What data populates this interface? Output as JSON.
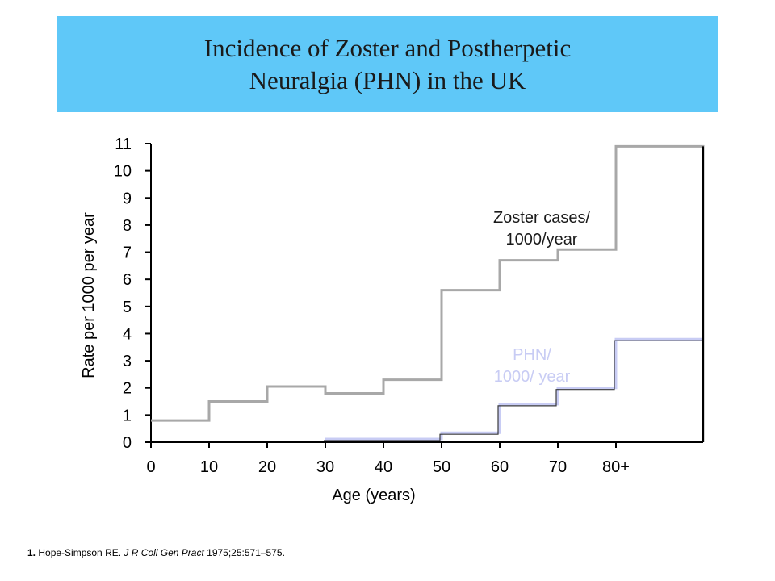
{
  "header": {
    "title_line1": "Incidence of Zoster and Postherpetic",
    "title_line2": "Neuralgia (PHN) in the UK"
  },
  "chart_data": {
    "type": "line",
    "step": true,
    "xlabel": "Age (years)",
    "ylabel": "Rate per 1000 per year",
    "xlim": [
      0,
      95
    ],
    "ylim": [
      0,
      11
    ],
    "x_ticks": [
      "0",
      "10",
      "20",
      "30",
      "40",
      "50",
      "60",
      "70",
      "80+"
    ],
    "y_ticks": [
      "0",
      "1",
      "2",
      "3",
      "4",
      "5",
      "6",
      "7",
      "8",
      "9",
      "10",
      "11"
    ],
    "series": [
      {
        "name": "Zoster cases/ 1000/year",
        "label_lines": [
          "Zoster cases/",
          "1000/year"
        ],
        "color": "#a8a8a8",
        "label_color": "#1a1a1a",
        "steps": [
          {
            "x0": 0,
            "x1": 10,
            "y": 0.8
          },
          {
            "x0": 10,
            "x1": 20,
            "y": 1.5
          },
          {
            "x0": 20,
            "x1": 30,
            "y": 2.05
          },
          {
            "x0": 30,
            "x1": 40,
            "y": 1.8
          },
          {
            "x0": 40,
            "x1": 50,
            "y": 2.3
          },
          {
            "x0": 50,
            "x1": 60,
            "y": 5.6
          },
          {
            "x0": 60,
            "x1": 70,
            "y": 6.7
          },
          {
            "x0": 70,
            "x1": 80,
            "y": 7.1
          },
          {
            "x0": 80,
            "x1": 95,
            "y": 10.9
          }
        ]
      },
      {
        "name": "PHN/ 1000/ year",
        "label_lines": [
          "PHN/",
          "1000/ year"
        ],
        "color": "#c8ccf4",
        "label_color": "#c8ccf4",
        "steps": [
          {
            "x0": 30,
            "x1": 50,
            "y": 0.12
          },
          {
            "x0": 50,
            "x1": 60,
            "y": 0.35
          },
          {
            "x0": 60,
            "x1": 70,
            "y": 1.4
          },
          {
            "x0": 70,
            "x1": 80,
            "y": 2.0
          },
          {
            "x0": 80,
            "x1": 95,
            "y": 3.8
          }
        ]
      }
    ]
  },
  "footnote": {
    "number": "1.",
    "text": "Hope-Simpson RE.",
    "journal": "J R Coll Gen Pract",
    "citation": "1975;25:571–575."
  }
}
